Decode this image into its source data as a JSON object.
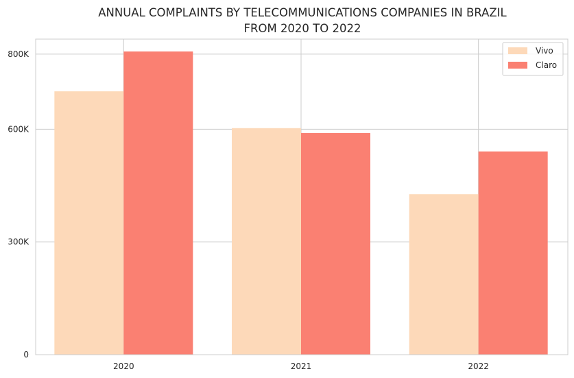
{
  "chart_data": {
    "type": "bar",
    "title_lines": [
      "ANNUAL COMPLAINTS  BY TELECOMMUNICATIONS COMPANIES IN BRAZIL",
      "FROM 2020 TO 2022"
    ],
    "categories": [
      "2020",
      "2021",
      "2022"
    ],
    "series": [
      {
        "name": "Vivo",
        "color": "#fdd9b9",
        "values": [
          701000,
          603000,
          427000
        ]
      },
      {
        "name": "Claro",
        "color": "#fa8072",
        "values": [
          807000,
          590000,
          541000
        ]
      }
    ],
    "yticks": [
      {
        "value": 0,
        "label": "0"
      },
      {
        "value": 300000,
        "label": "300K"
      },
      {
        "value": 600000,
        "label": "600K"
      },
      {
        "value": 800000,
        "label": "800K"
      }
    ],
    "ylim": [
      0,
      800000
    ],
    "xlabel": "",
    "ylabel": "",
    "grid": true,
    "legend_position": "top-right"
  }
}
